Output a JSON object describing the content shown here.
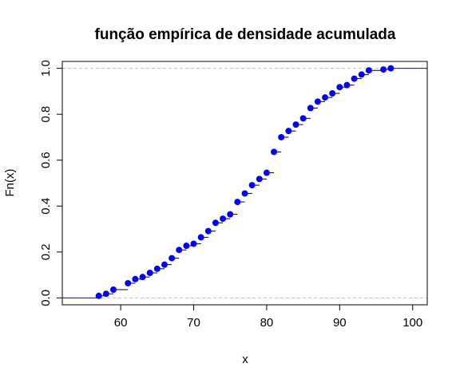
{
  "chart_data": {
    "type": "scatter",
    "subtype": "ecdf-step",
    "title": "função empírica de densidade acumulada",
    "xlabel": "x",
    "ylabel": "Fn(x)",
    "xlim": [
      52,
      102
    ],
    "ylim": [
      -0.03,
      1.03
    ],
    "x_ticks": [
      60,
      70,
      80,
      90,
      100
    ],
    "y_ticks": [
      0.0,
      0.2,
      0.4,
      0.6,
      0.8,
      1.0
    ],
    "y_tick_labels": [
      "0.0",
      "0.2",
      "0.4",
      "0.6",
      "0.8",
      "1.0"
    ],
    "reference_lines_y": [
      0,
      1
    ],
    "grid": false,
    "point_color": "#0000ff",
    "step_color": "#0000ff",
    "reference_line_color": "#bebebe",
    "points": [
      {
        "x": 57,
        "y": 0.009
      },
      {
        "x": 58,
        "y": 0.018
      },
      {
        "x": 59,
        "y": 0.036
      },
      {
        "x": 61,
        "y": 0.064
      },
      {
        "x": 62,
        "y": 0.082
      },
      {
        "x": 63,
        "y": 0.091
      },
      {
        "x": 64,
        "y": 0.109
      },
      {
        "x": 65,
        "y": 0.127
      },
      {
        "x": 66,
        "y": 0.145
      },
      {
        "x": 67,
        "y": 0.173
      },
      {
        "x": 68,
        "y": 0.209
      },
      {
        "x": 69,
        "y": 0.227
      },
      {
        "x": 70,
        "y": 0.236
      },
      {
        "x": 71,
        "y": 0.264
      },
      {
        "x": 72,
        "y": 0.291
      },
      {
        "x": 73,
        "y": 0.327
      },
      {
        "x": 74,
        "y": 0.345
      },
      {
        "x": 75,
        "y": 0.364
      },
      {
        "x": 76,
        "y": 0.418
      },
      {
        "x": 77,
        "y": 0.455
      },
      {
        "x": 78,
        "y": 0.491
      },
      {
        "x": 79,
        "y": 0.518
      },
      {
        "x": 80,
        "y": 0.545
      },
      {
        "x": 81,
        "y": 0.636
      },
      {
        "x": 82,
        "y": 0.7
      },
      {
        "x": 83,
        "y": 0.727
      },
      {
        "x": 84,
        "y": 0.755
      },
      {
        "x": 85,
        "y": 0.782
      },
      {
        "x": 86,
        "y": 0.827
      },
      {
        "x": 87,
        "y": 0.855
      },
      {
        "x": 88,
        "y": 0.873
      },
      {
        "x": 89,
        "y": 0.891
      },
      {
        "x": 90,
        "y": 0.918
      },
      {
        "x": 91,
        "y": 0.927
      },
      {
        "x": 92,
        "y": 0.955
      },
      {
        "x": 93,
        "y": 0.973
      },
      {
        "x": 94,
        "y": 0.991
      },
      {
        "x": 96,
        "y": 0.995
      },
      {
        "x": 97,
        "y": 1.0
      }
    ]
  }
}
